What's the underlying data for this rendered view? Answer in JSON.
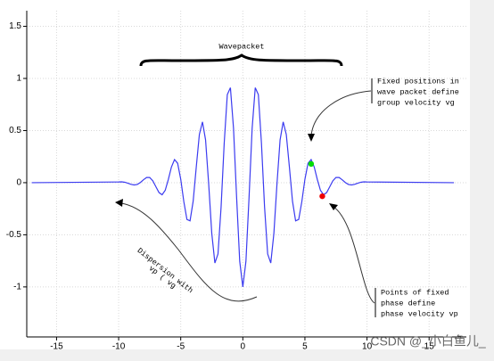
{
  "chart_data": {
    "type": "line",
    "x": [
      -17,
      -10,
      -9.75,
      -9.5,
      -9.25,
      -9,
      -8.75,
      -8.5,
      -8.25,
      -8,
      -7.75,
      -7.5,
      -7.25,
      -7,
      -6.75,
      -6.5,
      -6.25,
      -6,
      -5.75,
      -5.5,
      -5.25,
      -5,
      -4.75,
      -4.5,
      -4.25,
      -4,
      -3.75,
      -3.5,
      -3.25,
      -3,
      -2.75,
      -2.5,
      -2.25,
      -2,
      -1.75,
      -1.5,
      -1.25,
      -1,
      -0.75,
      -0.5,
      -0.25,
      0,
      0.25,
      0.5,
      0.75,
      1,
      1.25,
      1.5,
      1.75,
      2,
      2.25,
      2.5,
      2.75,
      3,
      3.25,
      3.5,
      3.75,
      4,
      4.25,
      4.5,
      4.75,
      5,
      5.25,
      5.5,
      5.75,
      6,
      6.25,
      6.5,
      6.75,
      7,
      7.25,
      7.5,
      7.75,
      8,
      8.25,
      8.5,
      8.75,
      9,
      9.25,
      9.5,
      9.75,
      10,
      17
    ],
    "series": [
      {
        "color": "#3b3bf0",
        "values": [
          0,
          0.007,
          0.008,
          0.004,
          -0.005,
          -0.016,
          -0.022,
          -0.017,
          0.002,
          0.028,
          0.05,
          0.05,
          0.018,
          -0.039,
          -0.095,
          -0.116,
          -0.073,
          0.03,
          0.15,
          0.222,
          0.186,
          0.033,
          -0.183,
          -0.353,
          -0.366,
          -0.178,
          0.15,
          0.463,
          0.583,
          0.41,
          -0.011,
          -0.488,
          -0.771,
          -0.684,
          -0.233,
          0.378,
          0.845,
          0.911,
          0.522,
          -0.143,
          -0.755,
          -1,
          -0.755,
          -0.143,
          0.522,
          0.911,
          0.845,
          0.378,
          -0.233,
          -0.684,
          -0.771,
          -0.488,
          -0.011,
          0.41,
          0.583,
          0.463,
          0.15,
          -0.178,
          -0.366,
          -0.353,
          -0.183,
          0.033,
          0.186,
          0.222,
          0.15,
          0.03,
          -0.073,
          -0.116,
          -0.095,
          -0.039,
          0.018,
          0.05,
          0.05,
          0.028,
          0.002,
          -0.017,
          -0.022,
          -0.016,
          -0.005,
          0.004,
          0.008,
          0.007,
          0
        ]
      }
    ],
    "points": [
      {
        "x": 5.5,
        "y": 0.18,
        "color": "#00dd00"
      },
      {
        "x": 6.4,
        "y": -0.13,
        "color": "#ee0000"
      }
    ],
    "xlim": [
      -17.4,
      18
    ],
    "xticks": [
      -15,
      -10,
      -5,
      0,
      5,
      10,
      15
    ],
    "ylim": [
      -1.48,
      1.65
    ],
    "yticks": [
      -1,
      -0.5,
      0,
      0.5,
      1,
      1.5
    ],
    "grid": true,
    "annotations": [
      "Wavepacket",
      "Fixed positions in",
      "wave packet define",
      "group velocity vg",
      "Points of fixed",
      "phase define",
      "phase velocity vp",
      "Dispersion with",
      "vp ( vg"
    ],
    "watermark": "CSDN @_小白鱼儿_"
  }
}
